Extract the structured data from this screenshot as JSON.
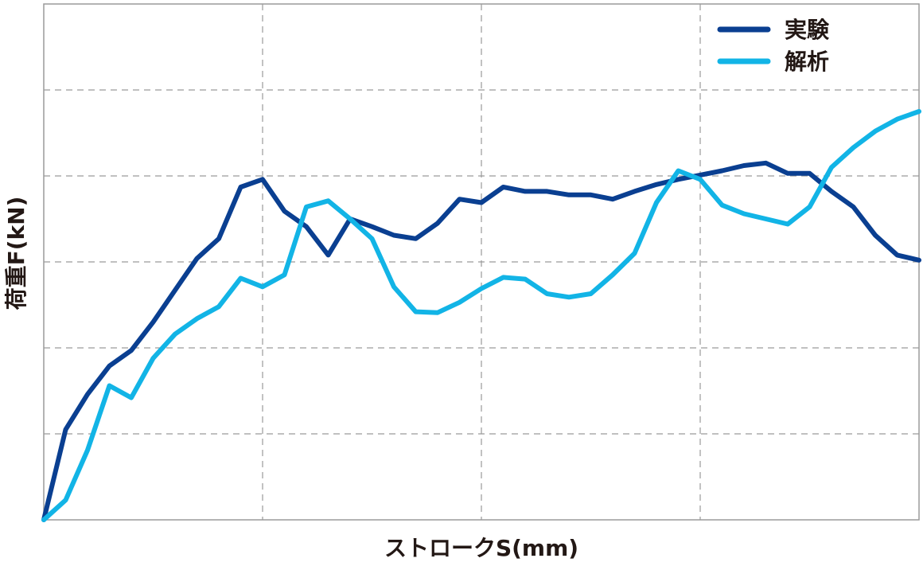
{
  "chart_data": {
    "type": "line",
    "x_label": "ストロークS(mm)",
    "y_label": "荷重F(kN)",
    "x": [
      0,
      0.1,
      0.2,
      0.3,
      0.4,
      0.5,
      0.6,
      0.7,
      0.8,
      0.9,
      1.0,
      1.1,
      1.2,
      1.3,
      1.4,
      1.5,
      1.6,
      1.7,
      1.8,
      1.9,
      2.0,
      2.1,
      2.2,
      2.3,
      2.4,
      2.5,
      2.6,
      2.7,
      2.8,
      2.9,
      3.0,
      3.1,
      3.2,
      3.3,
      3.4,
      3.5,
      3.6,
      3.7,
      3.8,
      3.9,
      4.0
    ],
    "series": [
      {
        "name": "実験",
        "color": "#0a3f91",
        "values": [
          0,
          1.05,
          1.46,
          1.79,
          1.97,
          2.3,
          2.67,
          3.04,
          3.27,
          3.87,
          3.96,
          3.59,
          3.41,
          3.08,
          3.5,
          3.41,
          3.31,
          3.27,
          3.45,
          3.73,
          3.69,
          3.87,
          3.82,
          3.82,
          3.78,
          3.78,
          3.73,
          3.82,
          3.9,
          3.96,
          4.01,
          4.06,
          4.12,
          4.15,
          4.03,
          4.03,
          3.82,
          3.64,
          3.31,
          3.08,
          3.02
        ]
      },
      {
        "name": "解析",
        "color": "#12b4e6",
        "values": [
          0,
          0.23,
          0.81,
          1.56,
          1.42,
          1.88,
          2.16,
          2.34,
          2.48,
          2.81,
          2.71,
          2.85,
          3.64,
          3.71,
          3.5,
          3.27,
          2.71,
          2.42,
          2.41,
          2.53,
          2.69,
          2.82,
          2.8,
          2.63,
          2.59,
          2.63,
          2.85,
          3.1,
          3.69,
          4.06,
          3.96,
          3.66,
          3.56,
          3.5,
          3.44,
          3.64,
          4.1,
          4.33,
          4.52,
          4.66,
          4.75
        ]
      }
    ],
    "xlim": [
      0,
      4
    ],
    "ylim": [
      0,
      6
    ],
    "xticks": [
      1,
      2,
      3
    ],
    "yticks": [
      1,
      2,
      3,
      4,
      5
    ],
    "tick_labels": false,
    "grid": true,
    "legend": "upper right"
  }
}
